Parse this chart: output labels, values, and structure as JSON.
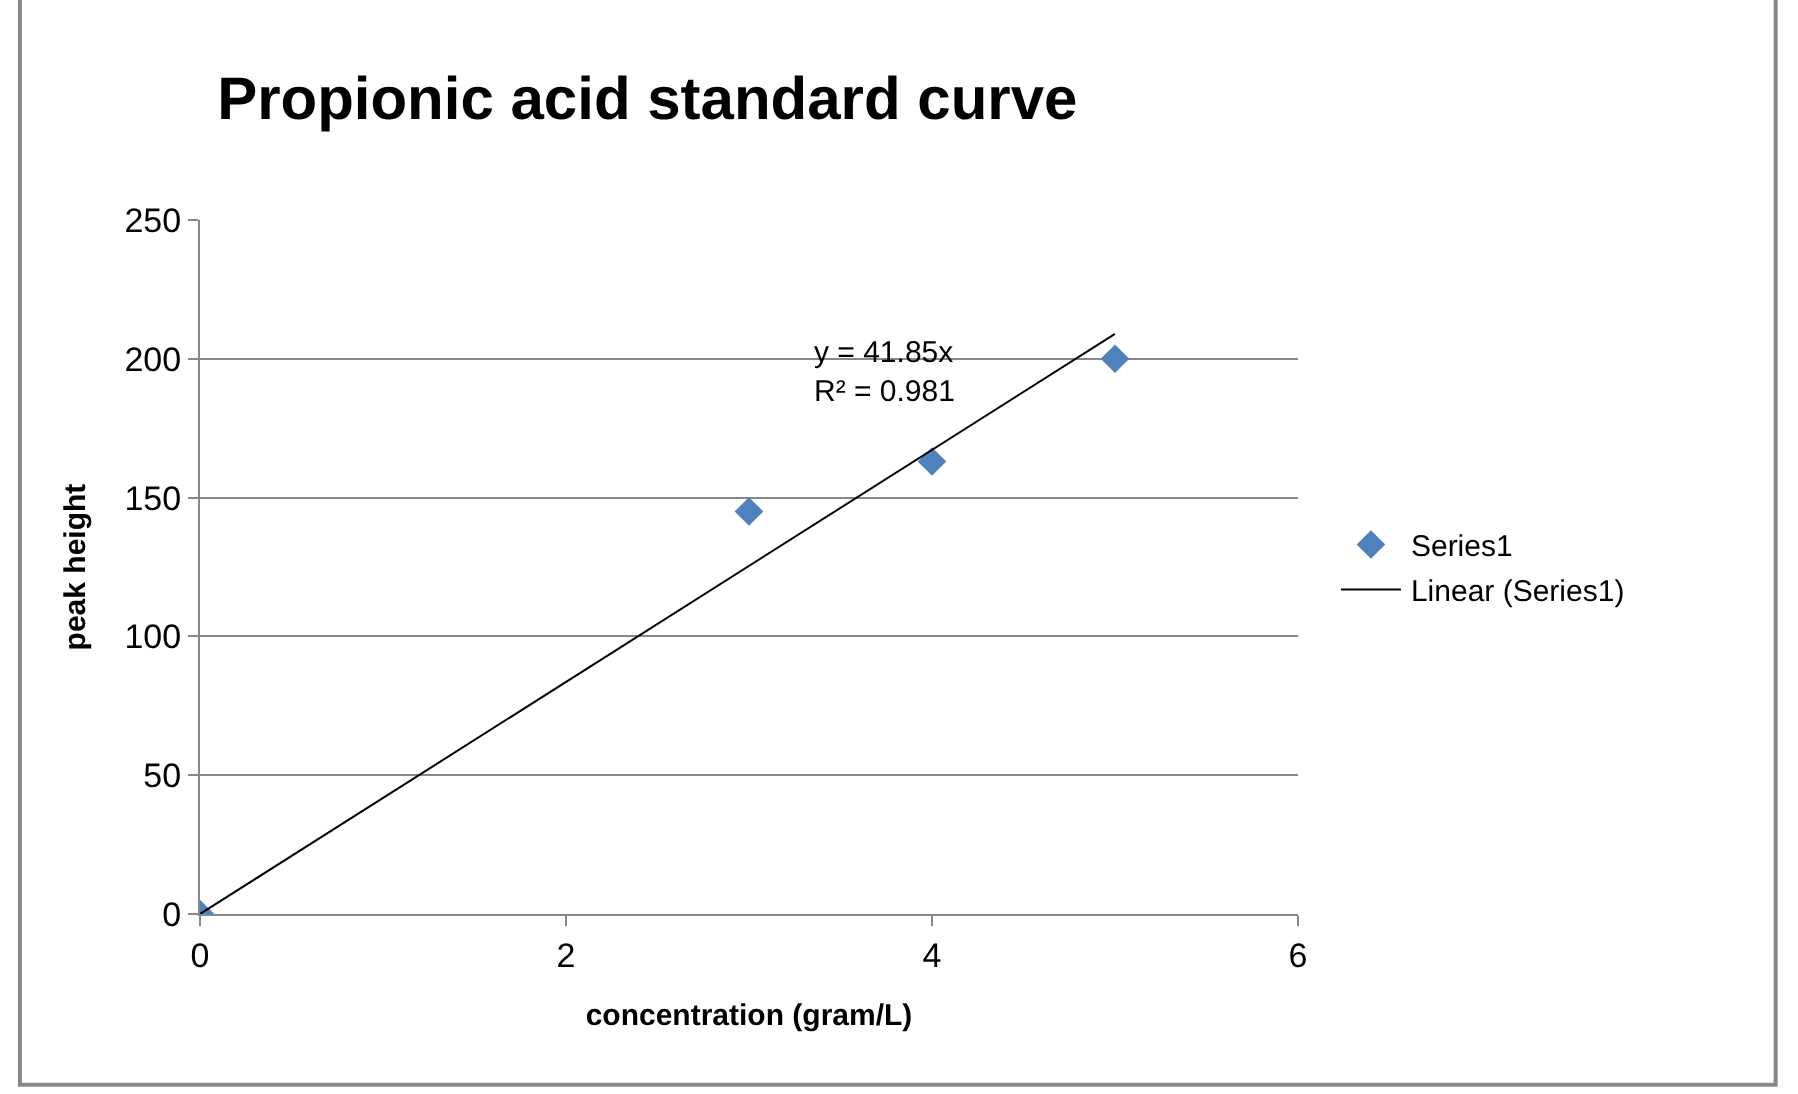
{
  "chart_data": {
    "type": "scatter",
    "title": "Propionic acid standard curve",
    "xlabel": "concentration (gram/L)",
    "ylabel": "peak height",
    "series": [
      {
        "name": "Series1",
        "color": "#4f81bd",
        "x": [
          0,
          3,
          4,
          5
        ],
        "values": [
          0,
          145,
          163,
          200
        ],
        "marker": "diamond"
      },
      {
        "name": "Linear (Series1)",
        "type": "line",
        "color": "#000000",
        "x": [
          0,
          5
        ],
        "values": [
          0,
          209
        ],
        "marker": "none",
        "line_style": "solid"
      }
    ],
    "annotations": [
      "y = 41.85x\nR² = 0.981"
    ],
    "xlim": [
      0,
      6
    ],
    "xticks": [
      0,
      2,
      4,
      6
    ],
    "ylim": [
      0,
      250
    ],
    "yticks": [
      0,
      50,
      100,
      150,
      200,
      250
    ],
    "grid": "y",
    "legend": "right"
  }
}
